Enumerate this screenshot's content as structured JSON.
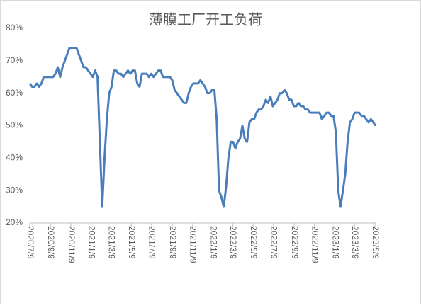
{
  "chart_data": {
    "type": "line",
    "title": "薄膜工厂开工负荷",
    "x": [
      "2020/7/9",
      "2020/7/16",
      "2020/7/23",
      "2020/7/30",
      "2020/8/6",
      "2020/8/13",
      "2020/8/20",
      "2020/8/27",
      "2020/9/3",
      "2020/9/10",
      "2020/9/17",
      "2020/9/24",
      "2020/10/1",
      "2020/10/8",
      "2020/10/15",
      "2020/10/22",
      "2020/10/29",
      "2020/11/5",
      "2020/11/12",
      "2020/11/19",
      "2020/11/26",
      "2020/12/3",
      "2020/12/10",
      "2020/12/17",
      "2020/12/24",
      "2020/12/31",
      "2021/1/7",
      "2021/1/14",
      "2021/1/21",
      "2021/1/28",
      "2021/2/4",
      "2021/2/11",
      "2021/2/18",
      "2021/2/25",
      "2021/3/4",
      "2021/3/11",
      "2021/3/18",
      "2021/3/25",
      "2021/4/1",
      "2021/4/8",
      "2021/4/15",
      "2021/4/22",
      "2021/4/29",
      "2021/5/6",
      "2021/5/13",
      "2021/5/20",
      "2021/5/27",
      "2021/6/3",
      "2021/6/10",
      "2021/6/17",
      "2021/6/24",
      "2021/7/1",
      "2021/7/8",
      "2021/7/15",
      "2021/7/22",
      "2021/7/29",
      "2021/8/5",
      "2021/8/12",
      "2021/8/19",
      "2021/8/26",
      "2021/9/2",
      "2021/9/9",
      "2021/9/16",
      "2021/9/23",
      "2021/9/30",
      "2021/10/7",
      "2021/10/14",
      "2021/10/21",
      "2021/10/28",
      "2021/11/4",
      "2021/11/11",
      "2021/11/18",
      "2021/11/25",
      "2021/12/2",
      "2021/12/9",
      "2021/12/16",
      "2021/12/23",
      "2021/12/30",
      "2022/1/6",
      "2022/1/13",
      "2022/1/20",
      "2022/1/27",
      "2022/2/3",
      "2022/2/10",
      "2022/2/17",
      "2022/2/24",
      "2022/3/3",
      "2022/3/10",
      "2022/3/17",
      "2022/3/24",
      "2022/3/31",
      "2022/4/7",
      "2022/4/14",
      "2022/4/21",
      "2022/4/28",
      "2022/5/5",
      "2022/5/12",
      "2022/5/19",
      "2022/5/26",
      "2022/6/2",
      "2022/6/9",
      "2022/6/16",
      "2022/6/23",
      "2022/6/30",
      "2022/7/7",
      "2022/7/14",
      "2022/7/21",
      "2022/7/28",
      "2022/8/4",
      "2022/8/11",
      "2022/8/18",
      "2022/8/25",
      "2022/9/1",
      "2022/9/8",
      "2022/9/15",
      "2022/9/22",
      "2022/9/29",
      "2022/10/6",
      "2022/10/13",
      "2022/10/20",
      "2022/10/27",
      "2022/11/3",
      "2022/11/10",
      "2022/11/17",
      "2022/11/24",
      "2022/12/1",
      "2022/12/8",
      "2022/12/15",
      "2022/12/22",
      "2022/12/29",
      "2023/1/5",
      "2023/1/12",
      "2023/1/19",
      "2023/1/26",
      "2023/2/2",
      "2023/2/9",
      "2023/2/16",
      "2023/2/23",
      "2023/3/2",
      "2023/3/9",
      "2023/3/16",
      "2023/3/23",
      "2023/3/30",
      "2023/4/6",
      "2023/4/13",
      "2023/4/20",
      "2023/4/27",
      "2023/5/4",
      "2023/5/11"
    ],
    "series": [
      {
        "color": "#4a7ebb",
        "values": [
          63,
          62,
          62,
          63,
          62,
          63,
          65,
          65,
          65,
          65,
          65,
          66,
          68,
          65,
          68,
          70,
          72,
          74,
          74,
          74,
          74,
          72,
          70,
          68,
          68,
          67,
          66,
          65,
          67,
          65,
          45,
          25,
          40,
          52,
          60,
          62,
          67,
          67,
          66,
          66,
          65,
          66,
          67,
          66,
          67,
          67,
          63,
          62,
          66,
          66,
          66,
          65,
          66,
          65,
          66,
          67,
          67,
          65,
          65,
          65,
          65,
          64,
          61,
          60,
          59,
          58,
          57,
          57,
          60,
          62,
          63,
          63,
          63,
          64,
          63,
          62,
          60,
          60,
          61,
          61,
          52,
          30,
          28,
          25,
          31,
          40,
          45,
          45,
          43,
          45,
          46,
          50,
          46,
          45,
          51,
          52,
          52,
          54,
          55,
          55,
          56,
          58,
          57,
          59,
          56,
          57,
          58,
          60,
          60,
          61,
          60,
          58,
          58,
          56,
          56,
          57,
          56,
          56,
          55,
          55,
          54,
          54,
          54,
          54,
          54,
          52,
          53,
          54,
          54,
          53,
          53,
          48,
          30,
          25,
          30,
          35,
          45,
          51,
          52,
          54,
          54,
          54,
          53,
          53,
          52,
          51,
          52,
          51,
          50
        ]
      }
    ],
    "xlim": [
      "2020/7/9",
      "2023/5/9"
    ],
    "xticks": [
      "2020/7/9",
      "2020/9/9",
      "2020/11/9",
      "2021/1/9",
      "2021/3/9",
      "2021/5/9",
      "2021/7/9",
      "2021/9/9",
      "2021/11/9",
      "2022/1/9",
      "2022/3/9",
      "2022/5/9",
      "2022/7/9",
      "2022/9/9",
      "2022/11/9",
      "2023/1/9",
      "2023/3/9",
      "2023/5/9"
    ],
    "ylim": [
      20,
      80
    ],
    "yticks": [
      {
        "value": 20,
        "label": "20%"
      },
      {
        "value": 30,
        "label": "30%"
      },
      {
        "value": 40,
        "label": "40%"
      },
      {
        "value": 50,
        "label": "50%"
      },
      {
        "value": 60,
        "label": "60%"
      },
      {
        "value": 70,
        "label": "70%"
      },
      {
        "value": 80,
        "label": "80%"
      }
    ],
    "grid": false
  }
}
